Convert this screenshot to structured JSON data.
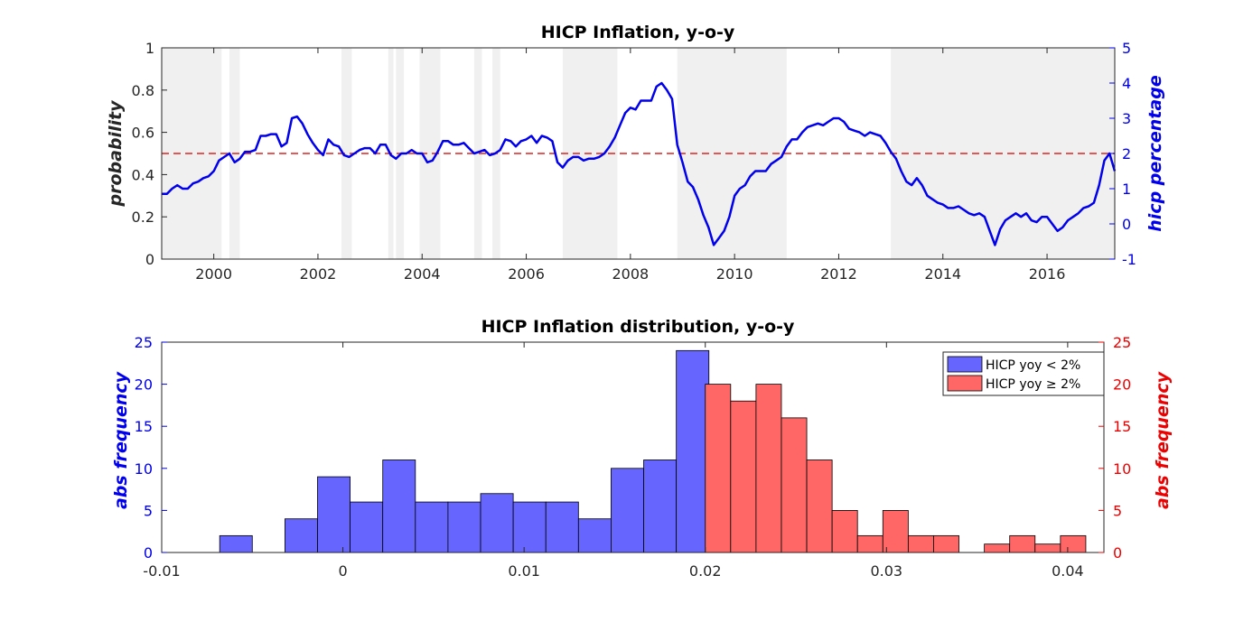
{
  "chart_data": [
    {
      "type": "line",
      "title": "HICP Inflation, y-o-y",
      "ylabel_left": "probability",
      "ylabel_right": "hicp percentage",
      "xlim": [
        1999.0,
        2017.3
      ],
      "ylim_left": [
        0,
        1
      ],
      "ylim_right": [
        -1,
        5
      ],
      "xticks": [
        "2000",
        "2002",
        "2004",
        "2006",
        "2008",
        "2010",
        "2012",
        "2014",
        "2016"
      ],
      "yticks_left": [
        "0",
        "0.2",
        "0.4",
        "0.6",
        "0.8",
        "1"
      ],
      "yticks_right": [
        "-1",
        "0",
        "1",
        "2",
        "3",
        "4",
        "5"
      ],
      "threshold": 2.0,
      "colors": {
        "line": "#0000ee",
        "threshold": "#dd2222",
        "shade": "#f0f0f0"
      },
      "shaded_regions": [
        [
          1999.0,
          2000.15
        ],
        [
          2000.3,
          2000.5
        ],
        [
          2002.45,
          2002.65
        ],
        [
          2003.35,
          2003.45
        ],
        [
          2003.5,
          2003.65
        ],
        [
          2003.95,
          2004.35
        ],
        [
          2005.0,
          2005.15
        ],
        [
          2005.35,
          2005.5
        ],
        [
          2006.7,
          2007.75
        ],
        [
          2008.9,
          2011.0
        ],
        [
          2013.0,
          2017.3
        ]
      ],
      "series": [
        {
          "x": [
            1999.0,
            1999.1,
            1999.2,
            1999.3,
            1999.4,
            1999.5,
            1999.6,
            1999.7,
            1999.8,
            1999.9,
            2000.0,
            2000.1,
            2000.2,
            2000.3,
            2000.4,
            2000.5,
            2000.6,
            2000.7,
            2000.8,
            2000.9,
            2001.0,
            2001.1,
            2001.2,
            2001.3,
            2001.4,
            2001.5,
            2001.6,
            2001.7,
            2001.8,
            2001.9,
            2002.0,
            2002.1,
            2002.2,
            2002.3,
            2002.4,
            2002.5,
            2002.6,
            2002.7,
            2002.8,
            2002.9,
            2003.0,
            2003.1,
            2003.2,
            2003.3,
            2003.4,
            2003.5,
            2003.6,
            2003.7,
            2003.8,
            2003.9,
            2004.0,
            2004.1,
            2004.2,
            2004.3,
            2004.4,
            2004.5,
            2004.6,
            2004.7,
            2004.8,
            2004.9,
            2005.0,
            2005.1,
            2005.2,
            2005.3,
            2005.4,
            2005.5,
            2005.6,
            2005.7,
            2005.8,
            2005.9,
            2006.0,
            2006.1,
            2006.2,
            2006.3,
            2006.4,
            2006.5,
            2006.6,
            2006.7,
            2006.8,
            2006.9,
            2007.0,
            2007.1,
            2007.2,
            2007.3,
            2007.4,
            2007.5,
            2007.6,
            2007.7,
            2007.8,
            2007.9,
            2008.0,
            2008.1,
            2008.2,
            2008.3,
            2008.4,
            2008.5,
            2008.6,
            2008.7,
            2008.8,
            2008.9,
            2009.0,
            2009.1,
            2009.2,
            2009.3,
            2009.4,
            2009.5,
            2009.6,
            2009.7,
            2009.8,
            2009.9,
            2010.0,
            2010.1,
            2010.2,
            2010.3,
            2010.4,
            2010.5,
            2010.6,
            2010.7,
            2010.8,
            2010.9,
            2011.0,
            2011.1,
            2011.2,
            2011.3,
            2011.4,
            2011.5,
            2011.6,
            2011.7,
            2011.8,
            2011.9,
            2012.0,
            2012.1,
            2012.2,
            2012.3,
            2012.4,
            2012.5,
            2012.6,
            2012.7,
            2012.8,
            2012.9,
            2013.0,
            2013.1,
            2013.2,
            2013.3,
            2013.4,
            2013.5,
            2013.6,
            2013.7,
            2013.8,
            2013.9,
            2014.0,
            2014.1,
            2014.2,
            2014.3,
            2014.4,
            2014.5,
            2014.6,
            2014.7,
            2014.8,
            2014.9,
            2015.0,
            2015.1,
            2015.2,
            2015.3,
            2015.4,
            2015.5,
            2015.6,
            2015.7,
            2015.8,
            2015.9,
            2016.0,
            2016.1,
            2016.2,
            2016.3,
            2016.4,
            2016.5,
            2016.6,
            2016.7,
            2016.8,
            2016.9,
            2017.0,
            2017.1,
            2017.2,
            2017.3
          ],
          "y": [
            0.85,
            0.85,
            1.0,
            1.1,
            1.0,
            1.0,
            1.15,
            1.2,
            1.3,
            1.35,
            1.5,
            1.8,
            1.9,
            2.0,
            1.75,
            1.85,
            2.05,
            2.05,
            2.1,
            2.5,
            2.5,
            2.55,
            2.55,
            2.2,
            2.3,
            3.0,
            3.05,
            2.85,
            2.55,
            2.3,
            2.1,
            1.95,
            2.4,
            2.25,
            2.2,
            1.95,
            1.9,
            2.0,
            2.1,
            2.15,
            2.15,
            2.0,
            2.25,
            2.25,
            1.95,
            1.85,
            2.0,
            2.0,
            2.1,
            2.0,
            2.0,
            1.75,
            1.8,
            2.05,
            2.35,
            2.35,
            2.25,
            2.25,
            2.3,
            2.15,
            2.0,
            2.05,
            2.1,
            1.95,
            2.0,
            2.1,
            2.4,
            2.35,
            2.2,
            2.35,
            2.4,
            2.5,
            2.3,
            2.5,
            2.45,
            2.35,
            1.75,
            1.6,
            1.8,
            1.9,
            1.9,
            1.8,
            1.85,
            1.85,
            1.9,
            2.0,
            2.2,
            2.45,
            2.8,
            3.15,
            3.3,
            3.25,
            3.5,
            3.5,
            3.5,
            3.9,
            4.0,
            3.8,
            3.55,
            2.25,
            1.75,
            1.2,
            1.05,
            0.7,
            0.25,
            -0.1,
            -0.6,
            -0.4,
            -0.2,
            0.2,
            0.8,
            1.0,
            1.1,
            1.35,
            1.5,
            1.5,
            1.5,
            1.7,
            1.8,
            1.9,
            2.2,
            2.4,
            2.4,
            2.6,
            2.75,
            2.8,
            2.85,
            2.8,
            2.9,
            3.0,
            3.0,
            2.9,
            2.7,
            2.65,
            2.6,
            2.5,
            2.6,
            2.55,
            2.5,
            2.3,
            2.05,
            1.85,
            1.5,
            1.2,
            1.1,
            1.3,
            1.1,
            0.8,
            0.7,
            0.6,
            0.55,
            0.45,
            0.45,
            0.5,
            0.4,
            0.3,
            0.25,
            0.3,
            0.2,
            -0.2,
            -0.6,
            -0.15,
            0.1,
            0.2,
            0.3,
            0.2,
            0.3,
            0.1,
            0.05,
            0.2,
            0.2,
            0.0,
            -0.2,
            -0.1,
            0.1,
            0.2,
            0.3,
            0.45,
            0.5,
            0.6,
            1.1,
            1.8,
            2.0,
            1.5
          ]
        }
      ]
    },
    {
      "type": "bar",
      "title": "HICP Inflation distribution, y-o-y",
      "ylabel_left": "abs frequency",
      "ylabel_right": "abs frequency",
      "xlim": [
        -0.01,
        0.042
      ],
      "ylim": [
        0,
        25
      ],
      "xticks": [
        "-0.01",
        "0",
        "0.01",
        "0.02",
        "0.03",
        "0.04"
      ],
      "yticks": [
        "0",
        "5",
        "10",
        "15",
        "20",
        "25"
      ],
      "bin_width": 0.0018,
      "colors": {
        "below": "#6666ff",
        "above": "#ff6666"
      },
      "series": [
        {
          "name": "HICP yoy < 2%",
          "bin_starts": [
            -0.0068,
            -0.005,
            -0.0032,
            -0.0014,
            0.0004,
            0.0022,
            0.004,
            0.0058,
            0.0076,
            0.0094,
            0.0112,
            0.013,
            0.0148,
            0.0166,
            0.0184
          ],
          "values": [
            2,
            0,
            4,
            9,
            6,
            11,
            6,
            6,
            7,
            6,
            6,
            4,
            10,
            11,
            24
          ]
        },
        {
          "name": "HICP yoy ≥ 2%",
          "bin_starts": [
            0.02,
            0.0214,
            0.0228,
            0.0242,
            0.0256,
            0.027,
            0.0284,
            0.0298,
            0.0312,
            0.0326,
            0.034,
            0.0354,
            0.0368,
            0.0382,
            0.0396
          ],
          "values": [
            20,
            18,
            20,
            16,
            11,
            5,
            2,
            5,
            2,
            2,
            0,
            1,
            2,
            1,
            2
          ]
        }
      ]
    }
  ]
}
